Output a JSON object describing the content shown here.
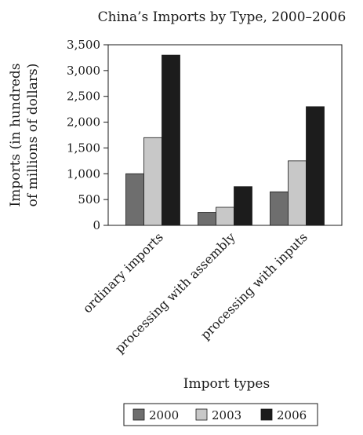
{
  "chart_data": {
    "type": "bar",
    "title": "China’s Imports by Type, 2000–2006",
    "xlabel": "Import types",
    "ylabel": "Imports (in hundreds of millions of dollars)",
    "ylabel_lines": [
      "Imports (in hundreds",
      "of millions of dollars)"
    ],
    "categories": [
      "ordinary imports",
      "processing with assembly",
      "processing with inputs"
    ],
    "series": [
      {
        "name": "2000",
        "color": "#6e6e6e",
        "values": [
          1000,
          250,
          650
        ]
      },
      {
        "name": "2003",
        "color": "#c8c8c8",
        "values": [
          1700,
          350,
          1250
        ]
      },
      {
        "name": "2006",
        "color": "#1c1c1c",
        "values": [
          3300,
          750,
          2300
        ]
      }
    ],
    "ylim": [
      0,
      3500
    ],
    "yticks": [
      0,
      500,
      1000,
      1500,
      2000,
      2500,
      3000,
      3500
    ],
    "ytick_labels": [
      "0",
      "500",
      "1,000",
      "1,500",
      "2,000",
      "2,500",
      "3,000",
      "3,500"
    ],
    "grid": false,
    "legend_position": "bottom"
  }
}
